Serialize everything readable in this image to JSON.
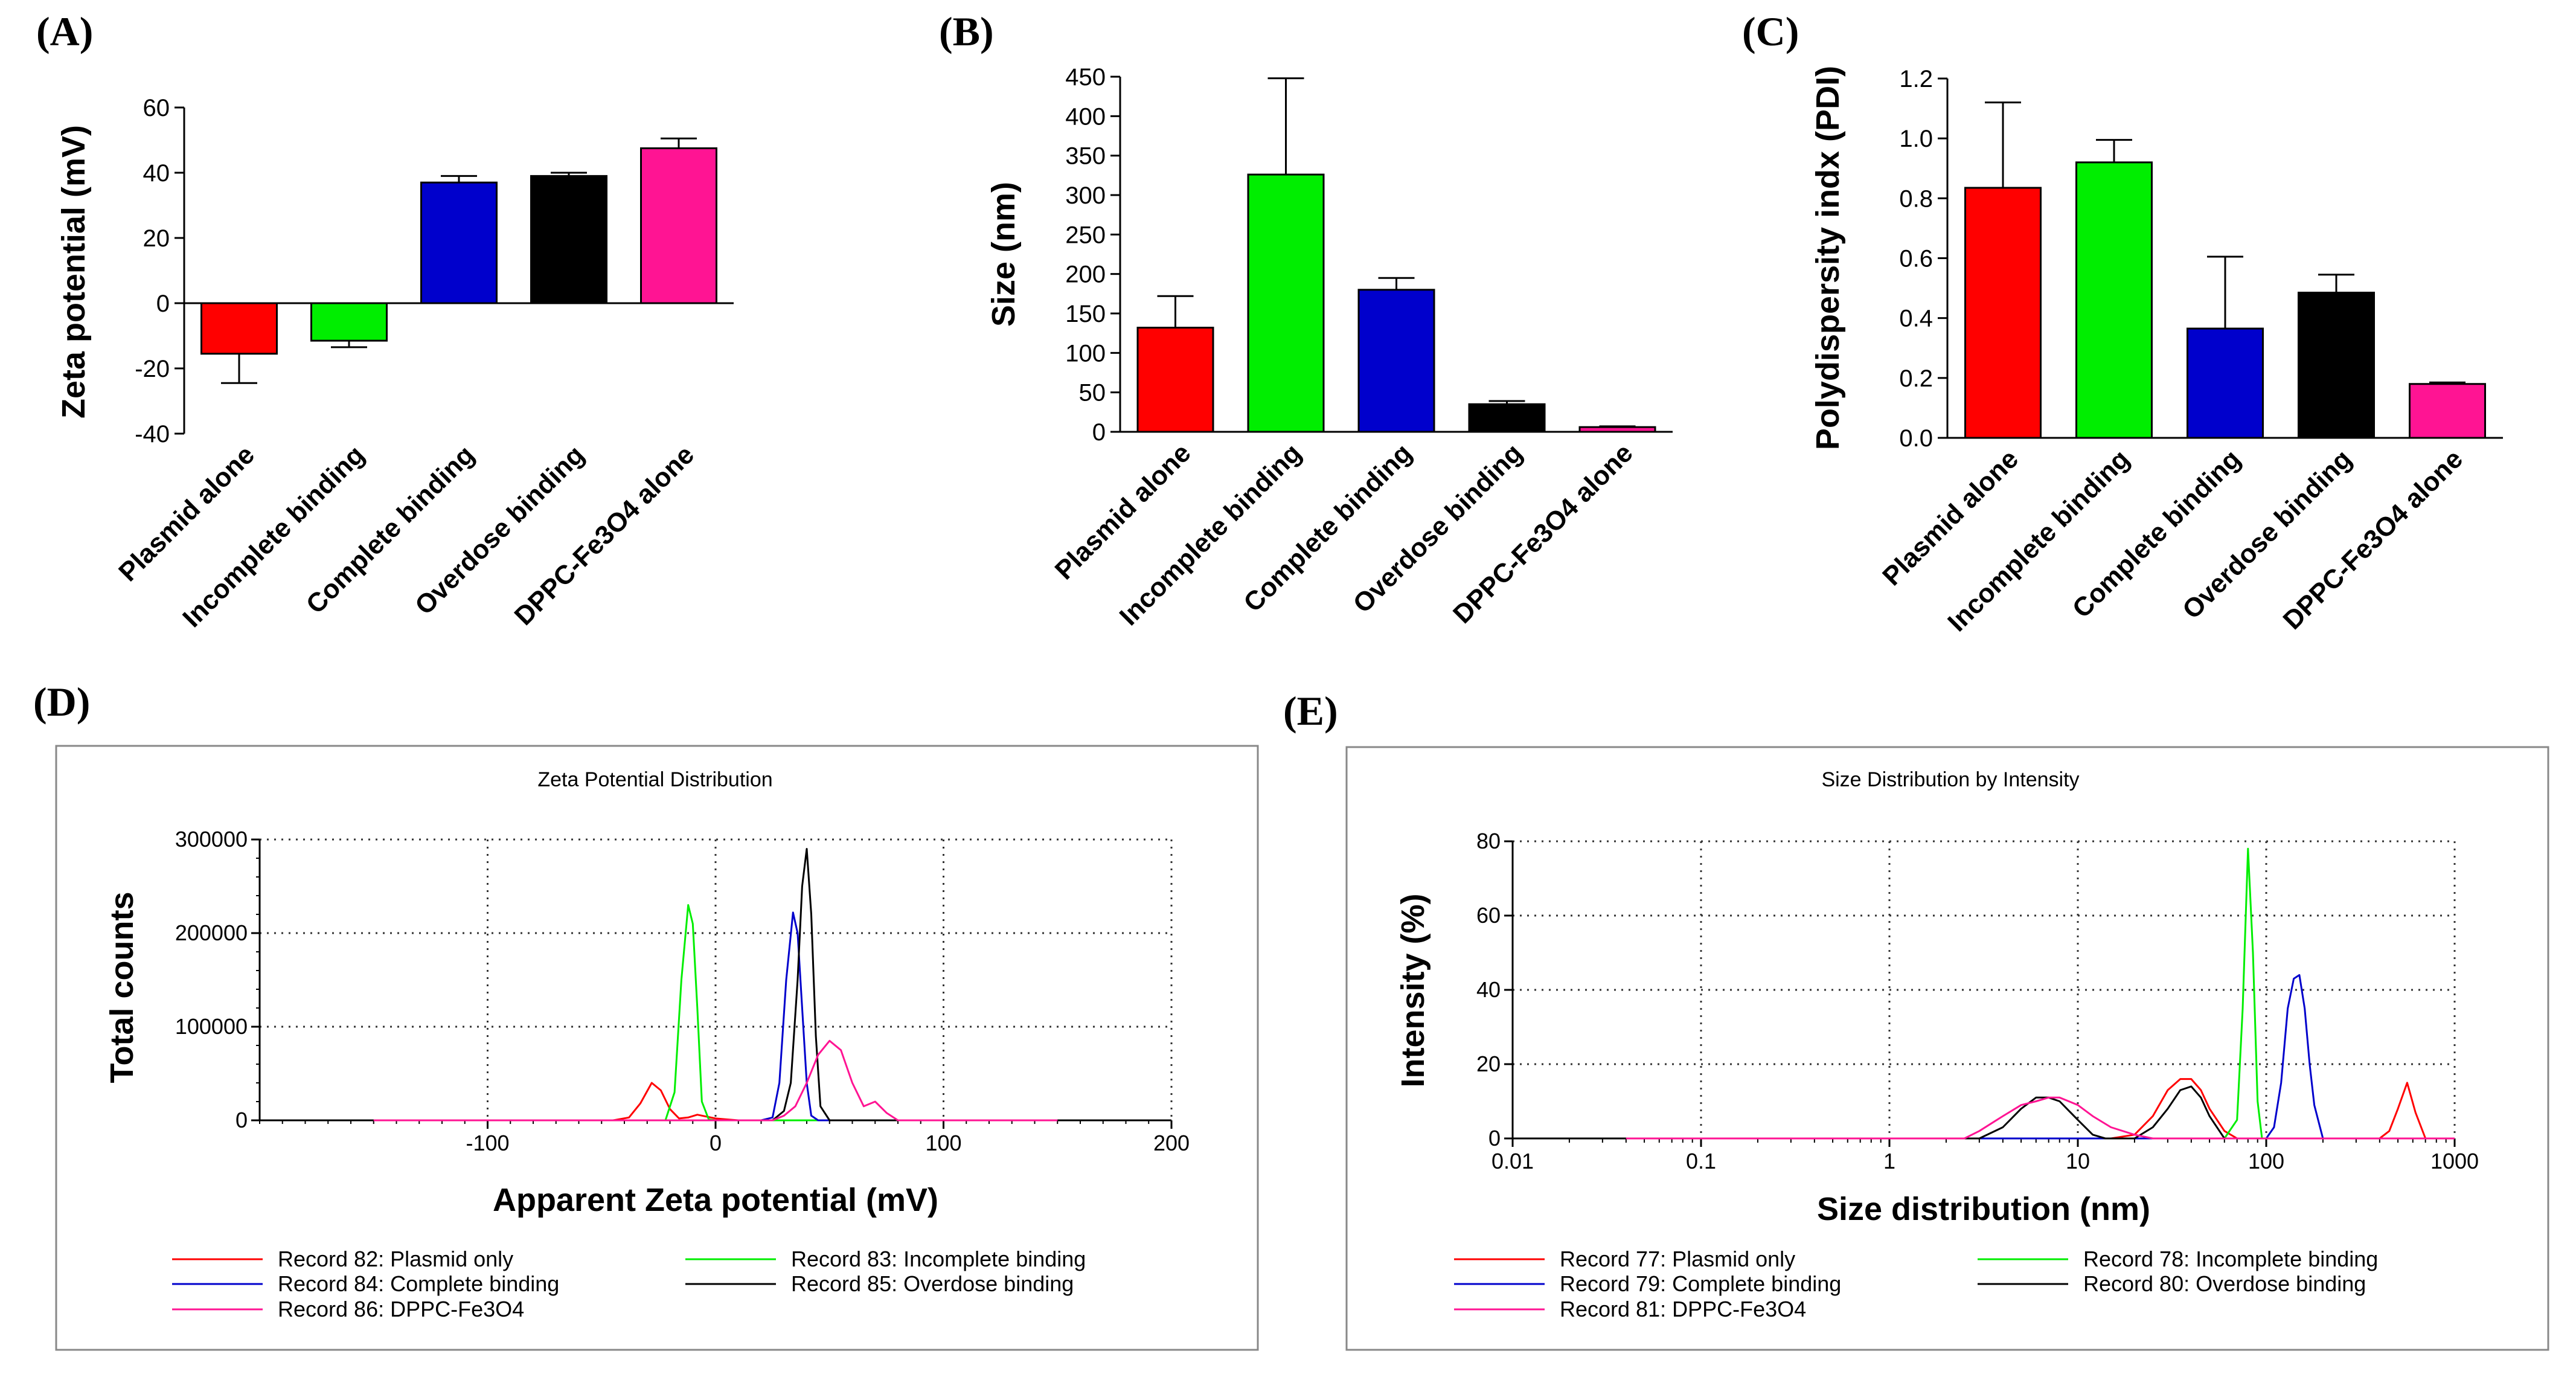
{
  "panels": {
    "A": "(A)",
    "B": "(B)",
    "C": "(C)",
    "D": "(D)",
    "E": "(E)"
  },
  "colors": {
    "plasmid": "#ff0000",
    "incomplete": "#00ee00",
    "complete": "#0000cc",
    "overdose": "#000000",
    "dppc": "#ff1493"
  },
  "chart_data": [
    {
      "id": "A",
      "type": "bar",
      "title": "",
      "ylabel": "Zeta potential (mV)",
      "xlabel": "",
      "ylim": [
        -40,
        60
      ],
      "yticks": [
        -40,
        -20,
        0,
        20,
        40,
        60
      ],
      "categories": [
        "Plasmid alone",
        "Incomplete binding",
        "Complete binding",
        "Overdose binding",
        "DPPC-Fe3O4 alone"
      ],
      "values": [
        -15.5,
        -11.5,
        37,
        39,
        47.5
      ],
      "errors": [
        9,
        2,
        2,
        1,
        3
      ],
      "colors": [
        "#ff0000",
        "#00ee00",
        "#0000cc",
        "#000000",
        "#ff1493"
      ]
    },
    {
      "id": "B",
      "type": "bar",
      "title": "",
      "ylabel": "Size (nm)",
      "xlabel": "",
      "ylim": [
        0,
        450
      ],
      "yticks": [
        0,
        50,
        100,
        150,
        200,
        250,
        300,
        350,
        400,
        450
      ],
      "categories": [
        "Plasmid alone",
        "Incomplete binding",
        "Complete binding",
        "Overdose binding",
        "DPPC-Fe3O4 alone"
      ],
      "values": [
        132,
        326,
        180,
        35,
        6
      ],
      "errors": [
        40,
        122,
        15,
        4,
        1
      ],
      "colors": [
        "#ff0000",
        "#00ee00",
        "#0000cc",
        "#000000",
        "#ff1493"
      ]
    },
    {
      "id": "C",
      "type": "bar",
      "title": "",
      "ylabel": "Polydispersity indx (PDI)",
      "xlabel": "",
      "ylim": [
        0,
        1.2
      ],
      "yticks": [
        "0.0",
        "0.2",
        "0.4",
        "0.6",
        "0.8",
        "1.0",
        "1.2"
      ],
      "categories": [
        "Plasmid alone",
        "Incomplete binding",
        "Complete binding",
        "Overdose binding",
        "DPPC-Fe3O4 alone"
      ],
      "values": [
        0.835,
        0.92,
        0.365,
        0.485,
        0.18
      ],
      "errors": [
        0.285,
        0.075,
        0.24,
        0.06,
        0.005
      ],
      "colors": [
        "#ff0000",
        "#00ee00",
        "#0000cc",
        "#000000",
        "#ff1493"
      ]
    },
    {
      "id": "D",
      "type": "line",
      "title": "Zeta Potential Distribution",
      "xlabel": "Apparent Zeta potential (mV)",
      "ylabel": "Total counts",
      "xlim": [
        -200,
        200
      ],
      "ylim": [
        0,
        300000
      ],
      "xticks": [
        -100,
        0,
        100,
        200
      ],
      "yticks": [
        0,
        100000,
        200000,
        300000
      ],
      "series": [
        {
          "name": "Record 82: Plasmid only",
          "color": "#ff0000",
          "x": [
            -150,
            -60,
            -45,
            -38,
            -33,
            -28,
            -24,
            -20,
            -16,
            -12,
            -8,
            -4,
            0,
            5,
            10,
            20,
            150
          ],
          "y": [
            0,
            0,
            0,
            3000,
            18000,
            40000,
            32000,
            12000,
            2000,
            3000,
            6000,
            4000,
            2000,
            1000,
            0,
            0,
            0
          ]
        },
        {
          "name": "Record 83: Incomplete binding",
          "color": "#00ee00",
          "x": [
            -150,
            -30,
            -22,
            -18,
            -15,
            -12,
            -10,
            -8,
            -6,
            -3,
            0,
            150
          ],
          "y": [
            0,
            0,
            0,
            30000,
            150000,
            230000,
            210000,
            120000,
            20000,
            1000,
            0,
            0
          ]
        },
        {
          "name": "Record 84: Complete binding",
          "color": "#0000cc",
          "x": [
            -150,
            20,
            25,
            28,
            31,
            34,
            36,
            38,
            40,
            42,
            45,
            150
          ],
          "y": [
            0,
            0,
            3000,
            40000,
            150000,
            222000,
            200000,
            120000,
            40000,
            5000,
            0,
            0
          ]
        },
        {
          "name": "Record 85: Overdose binding",
          "color": "#000000",
          "x": [
            -150,
            25,
            30,
            33,
            36,
            38,
            40,
            42,
            44,
            46,
            50,
            150
          ],
          "y": [
            0,
            0,
            10000,
            40000,
            150000,
            250000,
            290000,
            220000,
            90000,
            15000,
            0,
            0
          ]
        },
        {
          "name": "Record 86: DPPC-Fe3O4",
          "color": "#ff1493",
          "x": [
            -150,
            25,
            30,
            35,
            40,
            45,
            50,
            55,
            60,
            65,
            70,
            75,
            80,
            150
          ],
          "y": [
            0,
            0,
            5000,
            15000,
            40000,
            70000,
            85000,
            75000,
            40000,
            15000,
            20000,
            8000,
            0,
            0
          ]
        }
      ]
    },
    {
      "id": "E",
      "type": "line",
      "title": "Size Distribution by Intensity",
      "xlabel": "Size distribution (nm)",
      "ylabel": "Intensity (%)",
      "xscale": "log",
      "xlim": [
        0.01,
        1000
      ],
      "ylim": [
        0,
        80
      ],
      "xticks": [
        "0.01",
        "0.1",
        "1",
        "10",
        "100",
        "1000"
      ],
      "yticks": [
        0,
        20,
        40,
        60,
        80
      ],
      "series": [
        {
          "name": "Record 77: Plasmid only",
          "color": "#ff0000",
          "x": [
            0.04,
            15,
            20,
            25,
            30,
            35,
            40,
            45,
            50,
            60,
            70,
            300,
            400,
            450,
            500,
            560,
            620,
            700,
            1000
          ],
          "y": [
            0,
            0,
            1,
            6,
            13,
            16,
            16,
            13,
            8,
            2,
            0,
            0,
            0,
            2,
            8,
            15,
            7,
            0,
            0
          ]
        },
        {
          "name": "Record 78: Incomplete binding",
          "color": "#00ee00",
          "x": [
            0.04,
            60,
            70,
            75,
            80,
            85,
            90,
            95,
            100,
            1000
          ],
          "y": [
            0,
            0,
            5,
            35,
            78,
            50,
            10,
            0,
            0,
            0
          ]
        },
        {
          "name": "Record 79: Complete binding",
          "color": "#0000cc",
          "x": [
            0.04,
            100,
            110,
            120,
            130,
            140,
            150,
            160,
            170,
            180,
            200,
            1000
          ],
          "y": [
            0,
            0,
            3,
            15,
            35,
            43,
            44,
            35,
            20,
            9,
            0,
            0
          ]
        },
        {
          "name": "Record 80: Overdose binding",
          "color": "#000000",
          "x": [
            0.04,
            3,
            4,
            5,
            6,
            7,
            8,
            10,
            12,
            14,
            20,
            25,
            30,
            35,
            40,
            45,
            50,
            60,
            1000
          ],
          "y": [
            0,
            0,
            3,
            8,
            11,
            11,
            10,
            5,
            1,
            0,
            0,
            3,
            8,
            13,
            14,
            11,
            6,
            0,
            0
          ]
        },
        {
          "name": "Record 81: DPPC-Fe3O4",
          "color": "#ff1493",
          "x": [
            0.04,
            2.5,
            3,
            4,
            5,
            6,
            7,
            8,
            10,
            12,
            15,
            20,
            25,
            30,
            1000
          ],
          "y": [
            0,
            0,
            2,
            6,
            9,
            10,
            11,
            11,
            9,
            6,
            3,
            1,
            0,
            0,
            0
          ]
        }
      ]
    }
  ]
}
